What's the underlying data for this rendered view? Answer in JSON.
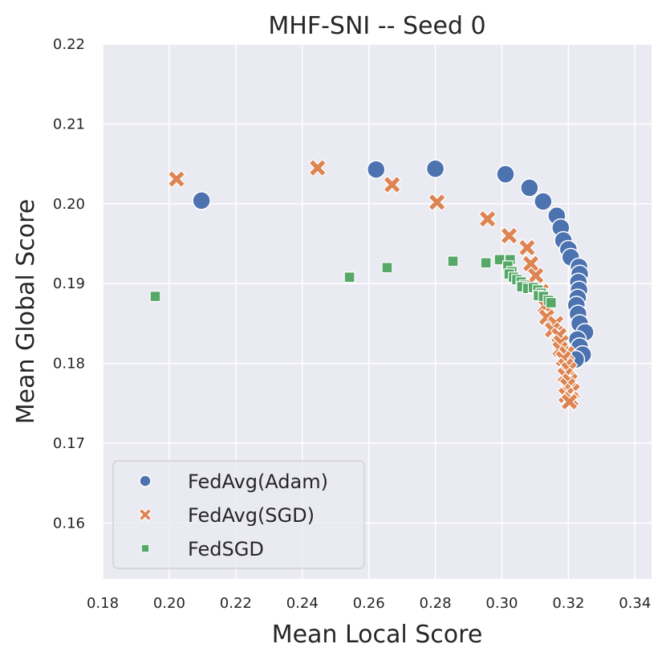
{
  "chart_data": {
    "type": "scatter",
    "title": "MHF-SNI -- Seed 0",
    "xlabel": "Mean Local Score",
    "ylabel": "Mean Global Score",
    "xlim": [
      0.18,
      0.345
    ],
    "ylim": [
      0.153,
      0.22
    ],
    "xticks": [
      0.18,
      0.2,
      0.22,
      0.24,
      0.26,
      0.28,
      0.3,
      0.32,
      0.34
    ],
    "xtick_labels": [
      "0.18",
      "0.20",
      "0.22",
      "0.24",
      "0.26",
      "0.28",
      "0.30",
      "0.32",
      "0.34"
    ],
    "yticks": [
      0.16,
      0.17,
      0.18,
      0.19,
      0.2,
      0.21,
      0.22
    ],
    "ytick_labels": [
      "0.16",
      "0.17",
      "0.18",
      "0.19",
      "0.20",
      "0.21",
      "0.22"
    ],
    "grid": true,
    "legend_position": "lower-left",
    "series": [
      {
        "name": "FedAvg(Adam)",
        "marker": "circle",
        "color": "#4c72b0",
        "points": [
          [
            0.2097,
            0.2004
          ],
          [
            0.2622,
            0.2043
          ],
          [
            0.28,
            0.2044
          ],
          [
            0.3011,
            0.2037
          ],
          [
            0.3083,
            0.202
          ],
          [
            0.3124,
            0.2003
          ],
          [
            0.3165,
            0.1985
          ],
          [
            0.3177,
            0.197
          ],
          [
            0.3185,
            0.1954
          ],
          [
            0.32,
            0.1943
          ],
          [
            0.3207,
            0.1933
          ],
          [
            0.3232,
            0.1921
          ],
          [
            0.3234,
            0.1912
          ],
          [
            0.323,
            0.1902
          ],
          [
            0.3232,
            0.1892
          ],
          [
            0.3228,
            0.1882
          ],
          [
            0.3224,
            0.1873
          ],
          [
            0.3229,
            0.1862
          ],
          [
            0.3234,
            0.185
          ],
          [
            0.325,
            0.1839
          ],
          [
            0.3227,
            0.183
          ],
          [
            0.3234,
            0.1821
          ],
          [
            0.3243,
            0.1811
          ],
          [
            0.3222,
            0.1805
          ]
        ]
      },
      {
        "name": "FedAvg(SGD)",
        "marker": "x",
        "color": "#dd8452",
        "points": [
          [
            0.2022,
            0.2031
          ],
          [
            0.2446,
            0.2045
          ],
          [
            0.267,
            0.2024
          ],
          [
            0.2805,
            0.2002
          ],
          [
            0.2957,
            0.1981
          ],
          [
            0.3022,
            0.196
          ],
          [
            0.3076,
            0.1945
          ],
          [
            0.3087,
            0.1925
          ],
          [
            0.3102,
            0.191
          ],
          [
            0.3118,
            0.189
          ],
          [
            0.313,
            0.1872
          ],
          [
            0.3135,
            0.1858
          ],
          [
            0.3162,
            0.185
          ],
          [
            0.3152,
            0.1842
          ],
          [
            0.3172,
            0.1835
          ],
          [
            0.3178,
            0.1826
          ],
          [
            0.3175,
            0.1818
          ],
          [
            0.3195,
            0.1812
          ],
          [
            0.3185,
            0.1806
          ],
          [
            0.3192,
            0.1797
          ],
          [
            0.3202,
            0.1792
          ],
          [
            0.319,
            0.1785
          ],
          [
            0.3205,
            0.1778
          ],
          [
            0.3198,
            0.1772
          ],
          [
            0.3212,
            0.1765
          ],
          [
            0.3193,
            0.176
          ],
          [
            0.3208,
            0.1755
          ],
          [
            0.3203,
            0.1752
          ]
        ]
      },
      {
        "name": "FedSGD",
        "marker": "square",
        "color": "#55a868",
        "points": [
          [
            0.1958,
            0.1884
          ],
          [
            0.2542,
            0.1908
          ],
          [
            0.2655,
            0.192
          ],
          [
            0.2853,
            0.1928
          ],
          [
            0.2952,
            0.1926
          ],
          [
            0.2993,
            0.193
          ],
          [
            0.3025,
            0.193
          ],
          [
            0.3018,
            0.1922
          ],
          [
            0.303,
            0.1915
          ],
          [
            0.3022,
            0.1912
          ],
          [
            0.3035,
            0.1908
          ],
          [
            0.3045,
            0.1905
          ],
          [
            0.3058,
            0.1902
          ],
          [
            0.3068,
            0.1898
          ],
          [
            0.306,
            0.1896
          ],
          [
            0.3078,
            0.1894
          ],
          [
            0.3095,
            0.1895
          ],
          [
            0.3108,
            0.1892
          ],
          [
            0.3118,
            0.1888
          ],
          [
            0.311,
            0.1885
          ],
          [
            0.3125,
            0.1884
          ],
          [
            0.314,
            0.1879
          ],
          [
            0.3148,
            0.1876
          ]
        ]
      }
    ]
  }
}
